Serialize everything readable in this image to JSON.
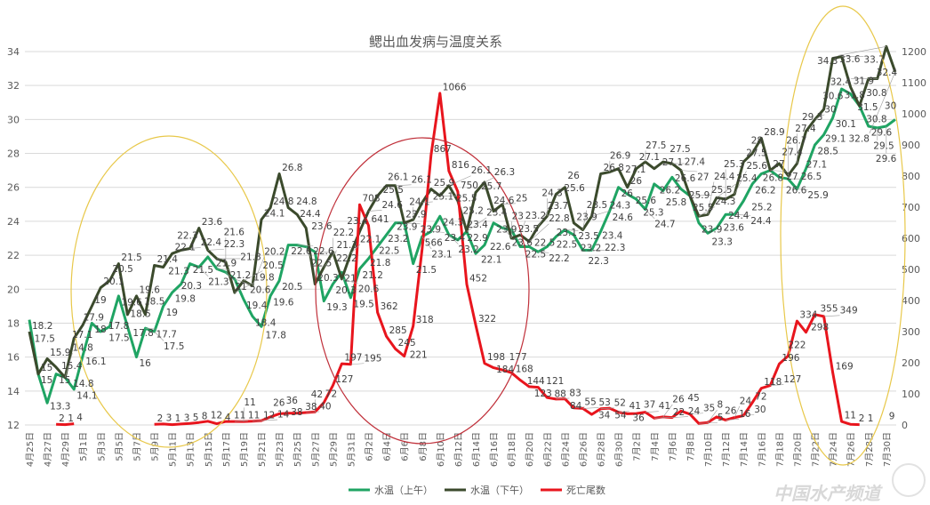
{
  "chart_data": {
    "type": "line",
    "title": "鳃出血发病与温度关系",
    "x_tick_labels": [
      "4月25日",
      "4月27日",
      "4月29日",
      "5月1日",
      "5月3日",
      "5月5日",
      "5月7日",
      "5月9日",
      "5月11日",
      "5月13日",
      "5月15日",
      "5月17日",
      "5月19日",
      "5月21日",
      "5月23日",
      "5月25日",
      "5月27日",
      "5月29日",
      "5月31日",
      "6月2日",
      "6月4日",
      "6月6日",
      "6月8日",
      "6月10日",
      "6月12日",
      "6月14日",
      "6月16日",
      "6月18日",
      "6月20日",
      "6月22日",
      "6月24日",
      "6月26日",
      "6月28日",
      "6月30日",
      "7月2日",
      "7月4日",
      "7月6日",
      "7月8日",
      "7月10日",
      "7月12日",
      "7月14日",
      "7月16日",
      "7月18日",
      "7月20日",
      "7月22日",
      "7月24日",
      "7月26日",
      "7月28日",
      "7月30日"
    ],
    "y_left": {
      "min": 12,
      "max": 34,
      "step": 2
    },
    "y_right": {
      "min": 0,
      "max": 1200,
      "step": 100
    },
    "grid": true,
    "legend_position": "bottom",
    "data_labels": true,
    "series": [
      {
        "name": "水温（上午）",
        "axis": "left",
        "color": "#1fa463",
        "values": [
          18.2,
          15.0,
          13.3,
          15.0,
          14.8,
          14.1,
          16.1,
          18.0,
          17.5,
          17.8,
          19.6,
          17.8,
          16.0,
          17.7,
          17.5,
          19.0,
          19.8,
          20.3,
          21.5,
          21.3,
          21.9,
          21.2,
          21.0,
          20.6,
          19.4,
          18.4,
          17.8,
          19.6,
          20.5,
          22.6,
          22.6,
          22.5,
          22.2,
          19.3,
          20.3,
          21.0,
          19.5,
          21.2,
          21.8,
          22.5,
          23.2,
          23.9,
          23.9,
          21.5,
          23.1,
          23.4,
          24.3,
          23.2,
          22.9,
          23.4,
          22.1,
          22.6,
          23.9,
          23.6,
          23.5,
          22.5,
          22.5,
          22.2,
          22.5,
          23.1,
          23.5,
          23.2,
          22.3,
          22.3,
          23.4,
          24.6,
          26.0,
          25.6,
          25.3,
          24.7,
          26.2,
          25.8,
          26.6,
          25.9,
          25.5,
          23.9,
          23.3,
          23.6,
          24.4,
          24.4,
          25.2,
          26.2,
          26.8,
          27.0,
          26.6,
          26.5,
          25.9,
          27.1,
          28.5,
          29.1,
          30.1,
          31.8,
          31.5,
          30.8,
          29.6,
          29.5,
          29.6,
          30.0
        ]
      },
      {
        "name": "水温（下午）",
        "axis": "left",
        "color": "#3b4a2c",
        "values": [
          17.5,
          15.0,
          15.9,
          15.4,
          14.8,
          17.1,
          17.9,
          19.0,
          20.1,
          20.5,
          21.5,
          18.5,
          19.6,
          18.5,
          21.4,
          21.3,
          22.1,
          22.3,
          22.4,
          23.6,
          22.3,
          21.8,
          21.6,
          19.8,
          20.5,
          20.2,
          24.1,
          24.8,
          26.8,
          24.8,
          24.4,
          23.6,
          20.3,
          21.3,
          22.2,
          20.6,
          22.1,
          23.4,
          24.6,
          25.5,
          26.1,
          26.1,
          23.9,
          24.1,
          25.1,
          25.9,
          25.5,
          26.1,
          25.2,
          23.4,
          25.7,
          26.3,
          24.6,
          25.0,
          23.0,
          23.2,
          22.8,
          23.7,
          24.3,
          25.6,
          26.0,
          23.9,
          23.5,
          24.3,
          26.8,
          26.9,
          27.1,
          26.0,
          27.1,
          27.5,
          27.1,
          27.5,
          27.4,
          27.0,
          25.5,
          24.3,
          24.4,
          25.4,
          25.3,
          25.6,
          27.5,
          28.0,
          28.9,
          27.0,
          27.4,
          26.7,
          27.4,
          29.3,
          30.0,
          30.6,
          33.6,
          33.7,
          31.9,
          30.8,
          32.4,
          32.4,
          34.3,
          32.8
        ]
      },
      {
        "name": "死亡尾数",
        "axis": "right",
        "color": "#e8151d",
        "values": [
          null,
          null,
          null,
          2,
          1,
          4,
          null,
          null,
          null,
          null,
          null,
          null,
          null,
          null,
          2,
          3,
          1,
          3,
          5,
          8,
          12,
          4,
          11,
          11,
          11,
          12,
          14,
          26,
          36,
          38,
          38,
          40,
          42,
          72,
          127,
          197,
          195,
          708,
          641,
          362,
          285,
          245,
          221,
          318,
          566,
          867,
          1066,
          816,
          750,
          452,
          322,
          198,
          184,
          177,
          168,
          144,
          123,
          121,
          88,
          83,
          84,
          55,
          53,
          34,
          52,
          54,
          41,
          36,
          37,
          41,
          22,
          26,
          24,
          45,
          35,
          5,
          8,
          26,
          16,
          24,
          30,
          72,
          118,
          127,
          196,
          222,
          334,
          298,
          355,
          349,
          169,
          11,
          2,
          1,
          null,
          null,
          9,
          null
        ]
      }
    ]
  },
  "watermark": {
    "text": "中国水产频道"
  },
  "annotations": {
    "ellipse_colors": [
      "#e8c84a",
      "#c0303a",
      "#e8c84a"
    ]
  }
}
